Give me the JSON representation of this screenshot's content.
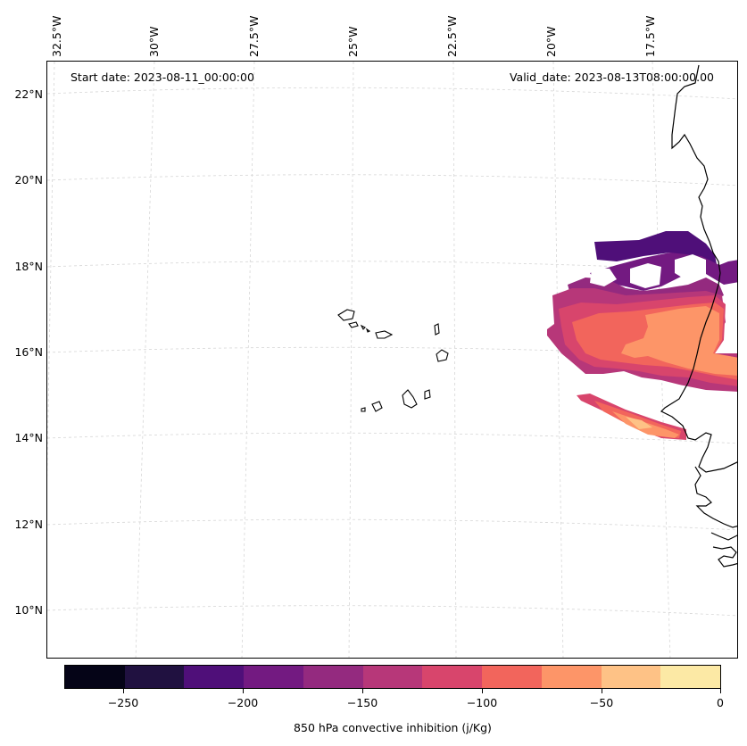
{
  "map": {
    "start_date": "Start date: 2023-08-11_00:00:00",
    "valid_date": "Valid_date: 2023-08-13T08:00:00.00",
    "lon_labels": [
      "32.5°W",
      "30°W",
      "27.5°W",
      "25°W",
      "22.5°W",
      "20°W",
      "17.5°W"
    ],
    "lat_labels": [
      "22°N",
      "20°N",
      "18°N",
      "16°N",
      "14°N",
      "12°N",
      "10°N"
    ]
  },
  "colorbar": {
    "title": "850 hPa convective inhibition (j/Kg)",
    "ticks": [
      "−250",
      "−200",
      "−150",
      "−100",
      "−50",
      "0"
    ],
    "colors": [
      "#050417",
      "#201140",
      "#4f0f79",
      "#731a81",
      "#942a7f",
      "#b73779",
      "#d8456c",
      "#f2655c",
      "#fd9568",
      "#fec286",
      "#fce9a5"
    ]
  },
  "colors": {
    "c_175_150": "#942a7f",
    "c_200_175": "#731a81",
    "c_225_200": "#4f0f79",
    "c_150_125": "#b73779",
    "c_125_100": "#d8456c",
    "c_100_75": "#f2655c",
    "c_75_50": "#fd9568",
    "c_50_25": "#fec286"
  }
}
